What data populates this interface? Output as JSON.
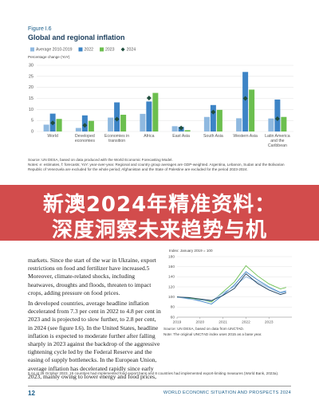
{
  "chart_data": [
    {
      "type": "bar",
      "figure_label": "Figure I.6",
      "title": "Global and regional inflation",
      "ylabel": "Percentage change (YoY)",
      "categories": [
        "World",
        "Developed economies",
        "Economies in transition",
        "Africa",
        "East Asia",
        "South Asia",
        "Western Asia",
        "Latin America and the Caribbean"
      ],
      "series": [
        {
          "name": "Average 2010-2019",
          "color": "#8fb9e0",
          "values": [
            3.1,
            1.6,
            6.3,
            8.0,
            2.4,
            6.6,
            6.0,
            5.9
          ]
        },
        {
          "name": "2022",
          "color": "#3d84c6",
          "values": [
            8.1,
            7.3,
            13.2,
            13.6,
            2.1,
            12.0,
            27.0,
            14.5
          ]
        },
        {
          "name": "2023",
          "color": "#6cbf4f",
          "values": [
            5.7,
            4.8,
            7.6,
            17.5,
            0.6,
            9.8,
            19.0,
            6.6
          ]
        },
        {
          "name": "2024",
          "color": "#1f4e3d",
          "marker": "diamond",
          "values": [
            3.9,
            2.8,
            5.6,
            15.2,
            1.6,
            8.8,
            15.0,
            5.8
          ]
        }
      ],
      "ylim": [
        0,
        30
      ],
      "yticks": [
        0,
        5,
        10,
        15,
        20,
        25,
        30
      ],
      "grid": true,
      "source": "Source: UN DESA, based on data produced with the World Economic Forecasting Model.",
      "note": "Notes: e: estimates, f: forecasts; YoY: year-over-year. Regional and country group averages are GDP-weighted. Argentina, Lebanon, Sudan and the Bolivarian Republic of Venezuela are excluded for the whole period; Afghanistan and the State of Palestine are excluded for the period 2023-2024."
    },
    {
      "type": "line",
      "ylabel": "Index: January 2019 = 100",
      "x": [
        2019,
        2019.5,
        2020,
        2020.5,
        2021,
        2021.5,
        2022,
        2022.5,
        2023,
        2023.5,
        2023.75
      ],
      "series": [
        {
          "color": "#6cbf4f",
          "values": [
            100,
            98,
            95,
            90,
            110,
            130,
            162,
            142,
            126,
            116,
            119
          ]
        },
        {
          "color": "#3d84c6",
          "values": [
            100,
            97,
            92,
            86,
            104,
            124,
            150,
            134,
            120,
            109,
            112
          ]
        },
        {
          "color": "#8fb9e0",
          "values": [
            100,
            96,
            94,
            92,
            108,
            121,
            140,
            130,
            118,
            108,
            110
          ]
        },
        {
          "color": "#1a3d5c",
          "values": [
            100,
            99,
            96,
            93,
            103,
            117,
            146,
            127,
            114,
            105,
            108
          ]
        }
      ],
      "xlim": [
        2019,
        2024
      ],
      "xticks": [
        2019,
        2020,
        2021,
        2022,
        2023
      ],
      "ylim": [
        60,
        180
      ],
      "yticks": [
        60,
        80,
        100,
        120,
        140,
        160,
        180
      ],
      "grid": true,
      "source": "Source: UN DESA, based on data from UNCTAD.",
      "note": "Note: The original UNCTAD index uses 2015 as a base year."
    }
  ],
  "body": {
    "paragraphs": [
      "markets. Since the start of the war in Ukraine, export restrictions on food and fertilizer have increased.5 Moreover, climate-related shocks, including heatwaves, droughts and floods, threaten to impact crops, adding pressure on food prices.",
      "In developed countries, average headline inflation decelerated from 7.3 per cent in 2022 to 4.8 per cent in 2023 and is projected to slow further, to 2.8 per cent, in 2024 (see figure I.6). In the United States, headline inflation is expected to moderate further after falling sharply in 2023 against the backdrop of the aggressive tightening cycle led by the Federal Reserve and the easing of supply bottlenecks. In the European Union, average inflation has decelerated rapidly since early 2023, mainly owing to lower energy and food prices,"
    ]
  },
  "footnote": "5   As at 26 October 2023, 15 countries had implemented food export bans and 8 countries had implemented export-limiting measures (World Bank, 2023a).",
  "footer": {
    "page_number": "12",
    "title": "WORLD ECONOMIC SITUATION AND PROSPECTS 2024"
  },
  "banner": {
    "lines": [
      "新澳2024年精准资料：",
      "深度洞察未来趋势与机"
    ]
  }
}
